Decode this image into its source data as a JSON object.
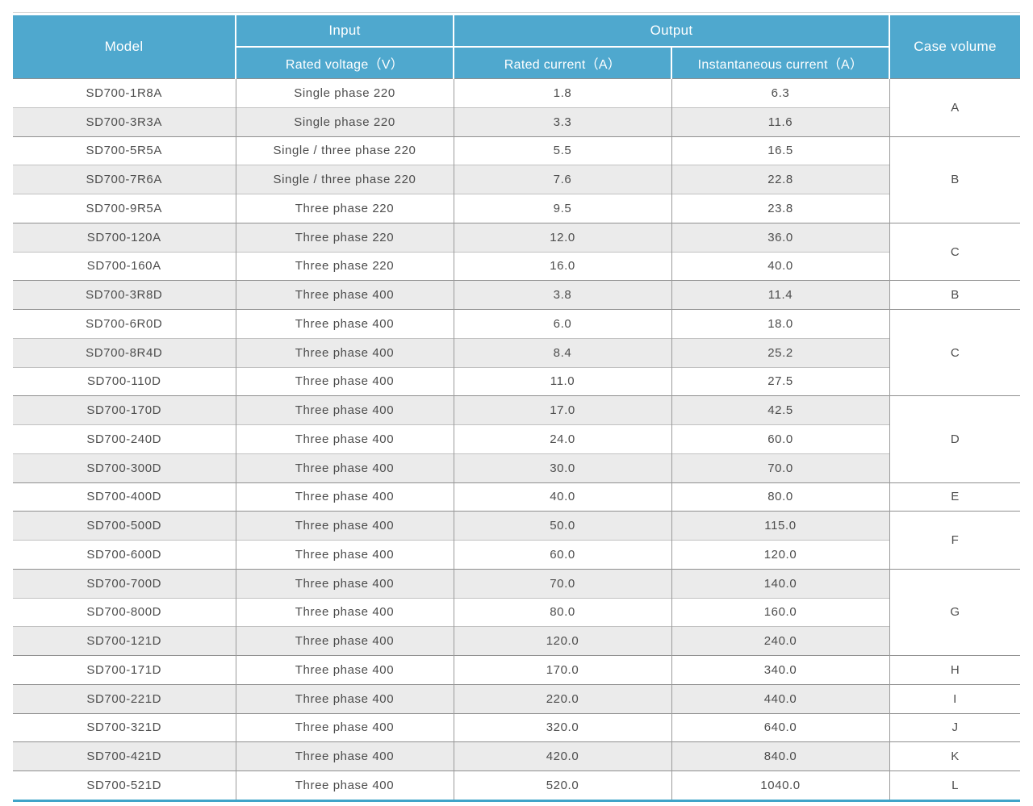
{
  "table": {
    "headers": {
      "model": "Model",
      "input_group": "Input",
      "output_group": "Output",
      "rated_voltage": "Rated voltage（V）",
      "rated_current": "Rated current（A）",
      "instantaneous_current": "Instantaneous current（A）",
      "case_volume": "Case volume"
    },
    "rows": [
      {
        "model": "SD700-1R8A",
        "voltage": "Single phase 220",
        "rated_current": "1.8",
        "instantaneous_current": "6.3",
        "case": "A",
        "case_span": 2
      },
      {
        "model": "SD700-3R3A",
        "voltage": "Single phase 220",
        "rated_current": "3.3",
        "instantaneous_current": "11.6",
        "case": "",
        "case_span": 0
      },
      {
        "model": "SD700-5R5A",
        "voltage": "Single / three phase 220",
        "rated_current": "5.5",
        "instantaneous_current": "16.5",
        "case": "B",
        "case_span": 3
      },
      {
        "model": "SD700-7R6A",
        "voltage": "Single / three phase 220",
        "rated_current": "7.6",
        "instantaneous_current": "22.8",
        "case": "",
        "case_span": 0
      },
      {
        "model": "SD700-9R5A",
        "voltage": "Three phase 220",
        "rated_current": "9.5",
        "instantaneous_current": "23.8",
        "case": "",
        "case_span": 0
      },
      {
        "model": "SD700-120A",
        "voltage": "Three phase 220",
        "rated_current": "12.0",
        "instantaneous_current": "36.0",
        "case": "C",
        "case_span": 2
      },
      {
        "model": "SD700-160A",
        "voltage": "Three phase 220",
        "rated_current": "16.0",
        "instantaneous_current": "40.0",
        "case": "",
        "case_span": 0
      },
      {
        "model": "SD700-3R8D",
        "voltage": "Three phase 400",
        "rated_current": "3.8",
        "instantaneous_current": "11.4",
        "case": "B",
        "case_span": 1
      },
      {
        "model": "SD700-6R0D",
        "voltage": "Three phase 400",
        "rated_current": "6.0",
        "instantaneous_current": "18.0",
        "case": "C",
        "case_span": 3
      },
      {
        "model": "SD700-8R4D",
        "voltage": "Three phase 400",
        "rated_current": "8.4",
        "instantaneous_current": "25.2",
        "case": "",
        "case_span": 0
      },
      {
        "model": "SD700-110D",
        "voltage": "Three phase 400",
        "rated_current": "11.0",
        "instantaneous_current": "27.5",
        "case": "",
        "case_span": 0
      },
      {
        "model": "SD700-170D",
        "voltage": "Three phase 400",
        "rated_current": "17.0",
        "instantaneous_current": "42.5",
        "case": "D",
        "case_span": 3
      },
      {
        "model": "SD700-240D",
        "voltage": "Three phase 400",
        "rated_current": "24.0",
        "instantaneous_current": "60.0",
        "case": "",
        "case_span": 0
      },
      {
        "model": "SD700-300D",
        "voltage": "Three phase 400",
        "rated_current": "30.0",
        "instantaneous_current": "70.0",
        "case": "",
        "case_span": 0
      },
      {
        "model": "SD700-400D",
        "voltage": "Three phase 400",
        "rated_current": "40.0",
        "instantaneous_current": "80.0",
        "case": "E",
        "case_span": 1
      },
      {
        "model": "SD700-500D",
        "voltage": "Three phase 400",
        "rated_current": "50.0",
        "instantaneous_current": "115.0",
        "case": "F",
        "case_span": 2
      },
      {
        "model": "SD700-600D",
        "voltage": "Three phase 400",
        "rated_current": "60.0",
        "instantaneous_current": "120.0",
        "case": "",
        "case_span": 0
      },
      {
        "model": "SD700-700D",
        "voltage": "Three phase 400",
        "rated_current": "70.0",
        "instantaneous_current": "140.0",
        "case": "G",
        "case_span": 3
      },
      {
        "model": "SD700-800D",
        "voltage": "Three phase 400",
        "rated_current": "80.0",
        "instantaneous_current": "160.0",
        "case": "",
        "case_span": 0
      },
      {
        "model": "SD700-121D",
        "voltage": "Three phase 400",
        "rated_current": "120.0",
        "instantaneous_current": "240.0",
        "case": "",
        "case_span": 0
      },
      {
        "model": "SD700-171D",
        "voltage": "Three phase 400",
        "rated_current": "170.0",
        "instantaneous_current": "340.0",
        "case": "H",
        "case_span": 1
      },
      {
        "model": "SD700-221D",
        "voltage": "Three phase 400",
        "rated_current": "220.0",
        "instantaneous_current": "440.0",
        "case": "I",
        "case_span": 1
      },
      {
        "model": "SD700-321D",
        "voltage": "Three phase 400",
        "rated_current": "320.0",
        "instantaneous_current": "640.0",
        "case": "J",
        "case_span": 1
      },
      {
        "model": "SD700-421D",
        "voltage": "Three phase 400",
        "rated_current": "420.0",
        "instantaneous_current": "840.0",
        "case": "K",
        "case_span": 1
      },
      {
        "model": "SD700-521D",
        "voltage": "Three phase 400",
        "rated_current": "520.0",
        "instantaneous_current": "1040.0",
        "case": "L",
        "case_span": 1
      }
    ]
  },
  "colors": {
    "header_bg": "#4fa8ce",
    "header_text": "#ffffff",
    "stripe_bg": "#ebebeb",
    "body_text": "#4d4d4d",
    "bottom_border": "#3fa4c9"
  }
}
